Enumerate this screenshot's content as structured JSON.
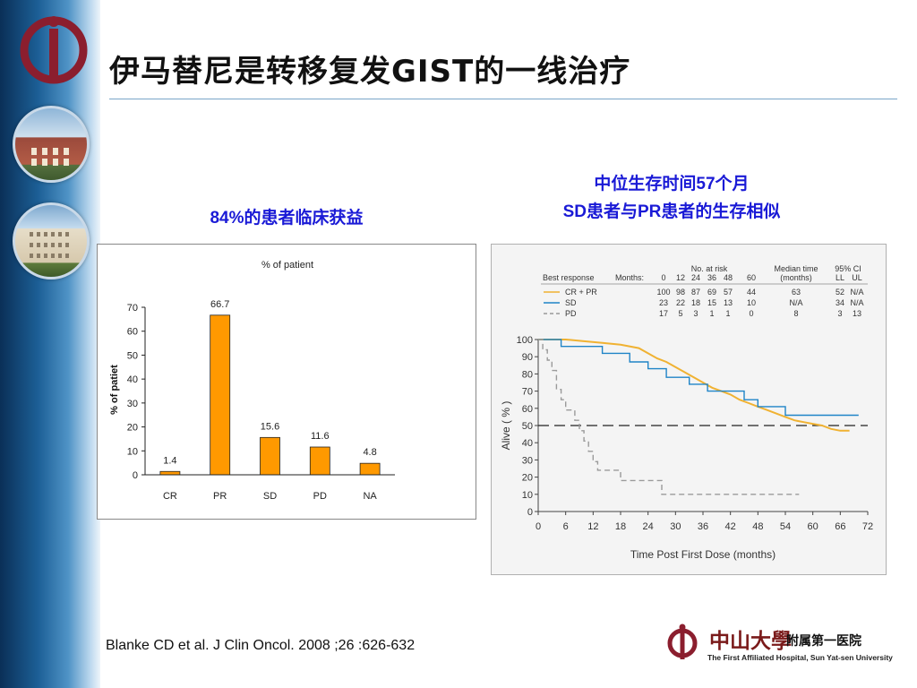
{
  "title": "伊马替尼是转移复发GIST的一线治疗",
  "left_caption": "84%的患者临床获益",
  "right_caption_1": "中位生存时间57个月",
  "right_caption_2": "SD患者与PR患者的生存相似",
  "citation": "Blanke CD et al. J Clin Oncol. 2008 ;26 :626-632",
  "university": {
    "cn_name": "中山大學",
    "cn_sub": "附属第一医院",
    "en_name": "The First Affiliated Hospital, Sun Yat-sen University"
  },
  "colors": {
    "bar": "#ff9900",
    "logo": "#8b1e2e",
    "caption": "#1a1ad6",
    "km_crpr": "#f0b232",
    "km_sd": "#1f84c7",
    "km_pd": "#9a9a9a"
  },
  "chart_data": [
    {
      "type": "bar",
      "title": "% of patient",
      "ylabel": "% of patiet",
      "xlabel": "",
      "categories": [
        "CR",
        "PR",
        "SD",
        "PD",
        "NA"
      ],
      "values": [
        1.4,
        66.7,
        15.6,
        11.6,
        4.8
      ],
      "data_labels": [
        "1.4",
        "66.7",
        "15.6",
        "11.6",
        "4.8"
      ],
      "ylim": [
        0,
        70
      ],
      "yticks": [
        0,
        10,
        20,
        30,
        40,
        50,
        60,
        70
      ],
      "grid": false
    },
    {
      "type": "line",
      "xlabel": "Time Post First Dose (months)",
      "ylabel": "Alive ( % )",
      "xlim": [
        0,
        72
      ],
      "ylim": [
        0,
        100
      ],
      "xticks": [
        0,
        6,
        12,
        18,
        24,
        30,
        36,
        42,
        48,
        54,
        60,
        66,
        72
      ],
      "yticks": [
        0,
        10,
        20,
        30,
        40,
        50,
        60,
        70,
        80,
        90,
        100
      ],
      "reference_line_y": 50,
      "table": {
        "header_best_response": "Best response",
        "header_months": "Months:",
        "header_no_at_risk": "No. at risk",
        "header_median_1": "Median time",
        "header_median_2": "(months)",
        "header_ci": "95% CI",
        "header_ll": "LL",
        "header_ul": "UL",
        "months": [
          "0",
          "12",
          "24",
          "36",
          "48",
          "60"
        ],
        "rows": [
          {
            "label": "CR + PR",
            "at_risk": [
              "100",
              "98",
              "87",
              "69",
              "57",
              "44"
            ],
            "median": "63",
            "ll": "52",
            "ul": "N/A"
          },
          {
            "label": "SD",
            "at_risk": [
              "23",
              "22",
              "18",
              "15",
              "13",
              "10"
            ],
            "median": "N/A",
            "ll": "34",
            "ul": "N/A"
          },
          {
            "label": "PD",
            "at_risk": [
              "17",
              "5",
              "3",
              "1",
              "1",
              "0"
            ],
            "median": "8",
            "ll": "3",
            "ul": "13"
          }
        ]
      },
      "series": [
        {
          "name": "CR + PR",
          "style": "solid",
          "points": [
            [
              0,
              100
            ],
            [
              6,
              100
            ],
            [
              10,
              99
            ],
            [
              14,
              98
            ],
            [
              18,
              97
            ],
            [
              22,
              95
            ],
            [
              24,
              92
            ],
            [
              26,
              89
            ],
            [
              28,
              87
            ],
            [
              30,
              84
            ],
            [
              32,
              81
            ],
            [
              34,
              78
            ],
            [
              36,
              75
            ],
            [
              38,
              72
            ],
            [
              40,
              70
            ],
            [
              42,
              68
            ],
            [
              44,
              65
            ],
            [
              46,
              63
            ],
            [
              48,
              61
            ],
            [
              50,
              59
            ],
            [
              52,
              57
            ],
            [
              54,
              55
            ],
            [
              56,
              53
            ],
            [
              58,
              52
            ],
            [
              60,
              51
            ],
            [
              62,
              50
            ],
            [
              64,
              48
            ],
            [
              66,
              47
            ],
            [
              68,
              47
            ]
          ]
        },
        {
          "name": "SD",
          "style": "solid",
          "points": [
            [
              0,
              100
            ],
            [
              5,
              100
            ],
            [
              5,
              96
            ],
            [
              14,
              96
            ],
            [
              14,
              92
            ],
            [
              20,
              92
            ],
            [
              20,
              87
            ],
            [
              24,
              87
            ],
            [
              24,
              83
            ],
            [
              28,
              83
            ],
            [
              28,
              78
            ],
            [
              33,
              78
            ],
            [
              33,
              74
            ],
            [
              37,
              74
            ],
            [
              37,
              70
            ],
            [
              45,
              70
            ],
            [
              45,
              65
            ],
            [
              48,
              65
            ],
            [
              48,
              61
            ],
            [
              54,
              61
            ],
            [
              54,
              56
            ],
            [
              70,
              56
            ]
          ]
        },
        {
          "name": "PD",
          "style": "dashed",
          "points": [
            [
              0,
              100
            ],
            [
              1,
              100
            ],
            [
              1,
              94
            ],
            [
              2,
              94
            ],
            [
              2,
              88
            ],
            [
              3,
              88
            ],
            [
              3,
              82
            ],
            [
              4,
              82
            ],
            [
              4,
              71
            ],
            [
              5,
              71
            ],
            [
              5,
              65
            ],
            [
              6,
              65
            ],
            [
              6,
              59
            ],
            [
              8,
              59
            ],
            [
              8,
              53
            ],
            [
              9,
              53
            ],
            [
              9,
              47
            ],
            [
              10,
              47
            ],
            [
              10,
              41
            ],
            [
              11,
              41
            ],
            [
              11,
              35
            ],
            [
              12,
              35
            ],
            [
              12,
              29
            ],
            [
              13,
              29
            ],
            [
              13,
              24
            ],
            [
              18,
              24
            ],
            [
              18,
              18
            ],
            [
              27,
              18
            ],
            [
              27,
              10
            ],
            [
              57,
              10
            ]
          ]
        }
      ]
    }
  ]
}
